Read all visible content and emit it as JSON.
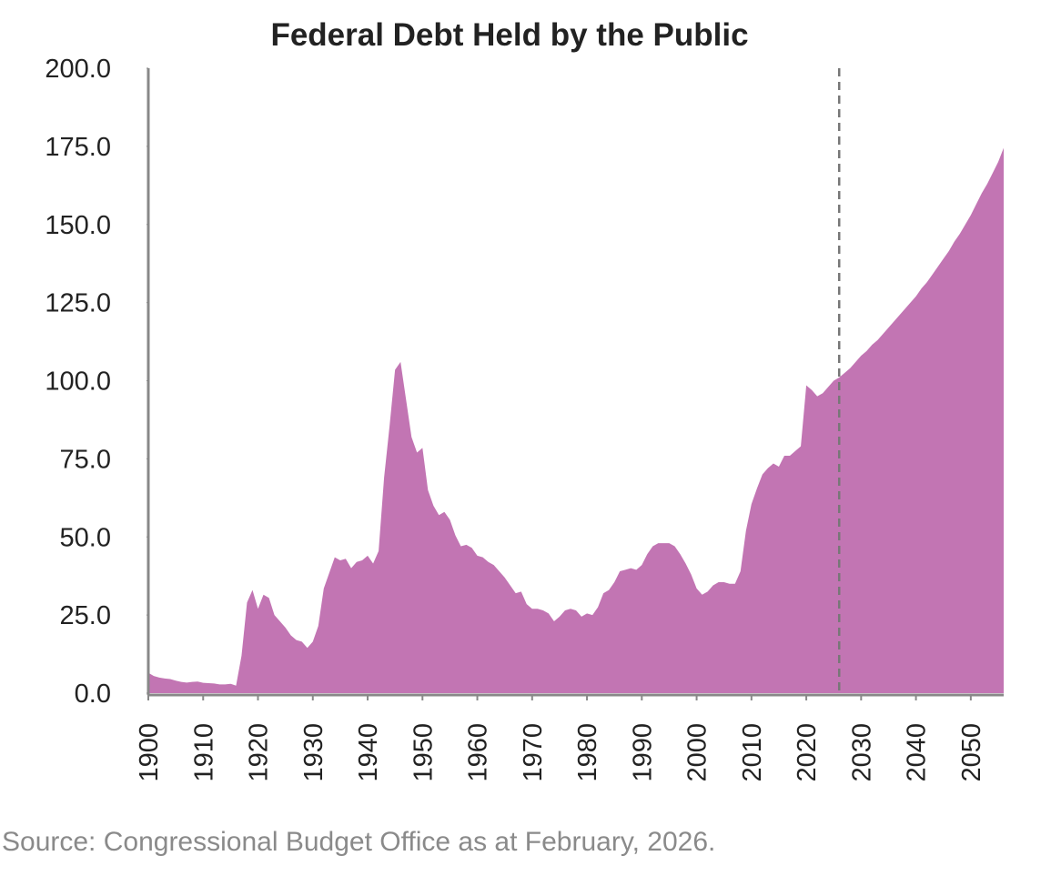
{
  "chart_data": {
    "type": "area",
    "title": "Federal Debt Held by the Public",
    "source": "Source: Congressional Budget Office as at February, 2026.",
    "color": "#c275b3",
    "x": [
      1900,
      1901,
      1902,
      1903,
      1904,
      1905,
      1906,
      1907,
      1908,
      1909,
      1910,
      1911,
      1912,
      1913,
      1914,
      1915,
      1916,
      1917,
      1918,
      1919,
      1920,
      1921,
      1922,
      1923,
      1924,
      1925,
      1926,
      1927,
      1928,
      1929,
      1930,
      1931,
      1932,
      1933,
      1934,
      1935,
      1936,
      1937,
      1938,
      1939,
      1940,
      1941,
      1942,
      1943,
      1944,
      1945,
      1946,
      1947,
      1948,
      1949,
      1950,
      1951,
      1952,
      1953,
      1954,
      1955,
      1956,
      1957,
      1958,
      1959,
      1960,
      1961,
      1962,
      1963,
      1964,
      1965,
      1966,
      1967,
      1968,
      1969,
      1970,
      1971,
      1972,
      1973,
      1974,
      1975,
      1976,
      1977,
      1978,
      1979,
      1980,
      1981,
      1982,
      1983,
      1984,
      1985,
      1986,
      1987,
      1988,
      1989,
      1990,
      1991,
      1992,
      1993,
      1994,
      1995,
      1996,
      1997,
      1998,
      1999,
      2000,
      2001,
      2002,
      2003,
      2004,
      2005,
      2006,
      2007,
      2008,
      2009,
      2010,
      2011,
      2012,
      2013,
      2014,
      2015,
      2016,
      2017,
      2018,
      2019,
      2020,
      2021,
      2022,
      2023,
      2024,
      2025,
      2026,
      2027,
      2028,
      2029,
      2030,
      2031,
      2032,
      2033,
      2034,
      2035,
      2036,
      2037,
      2038,
      2039,
      2040,
      2041,
      2042,
      2043,
      2044,
      2045,
      2046,
      2047,
      2048,
      2049,
      2050,
      2051,
      2052,
      2053,
      2054,
      2055,
      2056
    ],
    "values": [
      6.5,
      5.5,
      5,
      4.7,
      4.5,
      4,
      3.6,
      3.4,
      3.6,
      3.7,
      3.3,
      3.2,
      3.1,
      2.8,
      2.8,
      3,
      2.4,
      12,
      29,
      33,
      27,
      31.5,
      30.5,
      25,
      23,
      21,
      18.5,
      17,
      16.5,
      14.5,
      16.5,
      21.5,
      33.5,
      38.5,
      43.5,
      42.5,
      43,
      40,
      42,
      42.5,
      44,
      41.5,
      45.5,
      69,
      85.5,
      103.5,
      106,
      94,
      82,
      77,
      78.5,
      65,
      60,
      57,
      58,
      55.5,
      50.5,
      47,
      47.5,
      46.5,
      44,
      43.5,
      42,
      41,
      39,
      37,
      34.5,
      32,
      32.5,
      28.5,
      27,
      27,
      26.5,
      25.5,
      23,
      24.5,
      26.5,
      27,
      26.5,
      24.5,
      25.5,
      25,
      27.5,
      32,
      33,
      35.5,
      39,
      39.5,
      40,
      39.5,
      41,
      44.5,
      47,
      48,
      48,
      48,
      47,
      44.5,
      41.5,
      38,
      33.5,
      31.5,
      32.5,
      34.5,
      35.5,
      35.5,
      35,
      35,
      39,
      52,
      60.5,
      65.5,
      70,
      72,
      73.5,
      72.5,
      76,
      76,
      77.5,
      79,
      98.5,
      97,
      95,
      96,
      98,
      100,
      101,
      102.5,
      104,
      106,
      108,
      109.5,
      111.5,
      113,
      115,
      117,
      119,
      121,
      123,
      125,
      127,
      129.5,
      131.5,
      134,
      136.5,
      139,
      141.5,
      144.5,
      147,
      150,
      153,
      156.5,
      160,
      163,
      166.5,
      170,
      174.5
    ],
    "xlim": [
      1900,
      2056
    ],
    "xticks": [
      1900,
      1910,
      1920,
      1930,
      1940,
      1950,
      1960,
      1970,
      1980,
      1990,
      2000,
      2010,
      2020,
      2030,
      2040,
      2050
    ],
    "ylim": [
      0,
      200
    ],
    "yticks": [
      {
        "value": 0,
        "label": "0.0"
      },
      {
        "value": 25,
        "label": "25.0"
      },
      {
        "value": 50,
        "label": "50.0"
      },
      {
        "value": 75,
        "label": "75.0"
      },
      {
        "value": 100,
        "label": "100.0"
      },
      {
        "value": 125,
        "label": "125.0"
      },
      {
        "value": 150,
        "label": "150.0"
      },
      {
        "value": 175,
        "label": "175.0"
      },
      {
        "value": 200,
        "label": "200.0"
      }
    ],
    "vline": 2026,
    "grid": false
  }
}
